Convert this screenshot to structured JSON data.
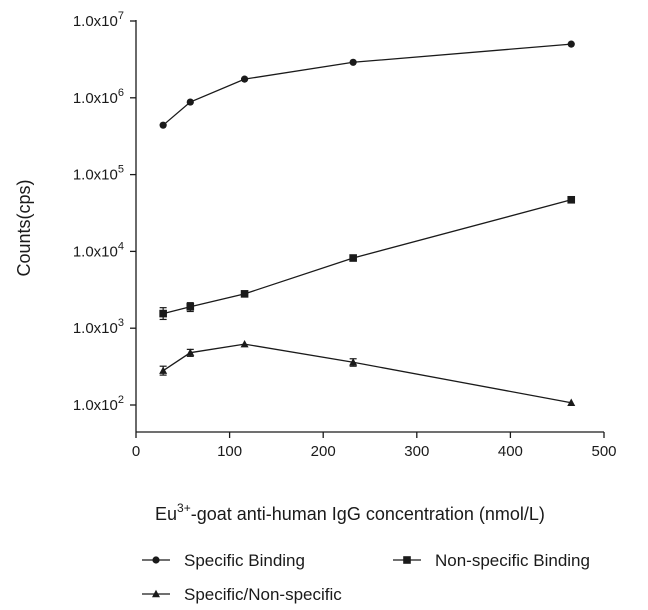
{
  "chart_data": {
    "type": "line",
    "title": "",
    "xlabel": {
      "prefix": "Eu",
      "superscript": "3+",
      "suffix": "-goat anti-human IgG concentration (nmol/L)"
    },
    "ylabel": "Counts(cps)",
    "xlim": [
      0,
      500
    ],
    "ylim": [
      100,
      10000000
    ],
    "yscale": "log",
    "x_ticks": [
      "0",
      "100",
      "200",
      "300",
      "400",
      "500"
    ],
    "y_ticks": [
      {
        "mantissa": "1.0x10",
        "exponent": "2"
      },
      {
        "mantissa": "1.0x10",
        "exponent": "3"
      },
      {
        "mantissa": "1.0x10",
        "exponent": "4"
      },
      {
        "mantissa": "1.0x10",
        "exponent": "5"
      },
      {
        "mantissa": "1.0x10",
        "exponent": "6"
      },
      {
        "mantissa": "1.0x10",
        "exponent": "7"
      }
    ],
    "grid": false,
    "legend_position": "bottom",
    "series": [
      {
        "name": "Specific Binding",
        "marker": "circle",
        "color": "#1a1a1a",
        "x": [
          29,
          58,
          116,
          232,
          465
        ],
        "y": [
          440000,
          880000,
          1750000,
          2900000,
          5000000
        ],
        "err_low": [
          440000,
          880000,
          1750000,
          2900000,
          5000000
        ],
        "err_high": [
          440000,
          880000,
          1750000,
          2900000,
          5000000
        ]
      },
      {
        "name": "Non-specific Binding",
        "marker": "square",
        "color": "#1a1a1a",
        "x": [
          29,
          58,
          116,
          232,
          465
        ],
        "y": [
          1550,
          1900,
          2800,
          8200,
          47000
        ],
        "err_low": [
          1300,
          1650,
          2800,
          8200,
          47000
        ],
        "err_high": [
          1850,
          2150,
          2800,
          8200,
          47000
        ]
      },
      {
        "name": "Specific/Non-specific",
        "marker": "triangle",
        "color": "#1a1a1a",
        "x": [
          29,
          58,
          116,
          232,
          465
        ],
        "y": [
          280,
          480,
          620,
          360,
          107
        ],
        "err_low": [
          245,
          430,
          620,
          320,
          107
        ],
        "err_high": [
          320,
          530,
          620,
          400,
          107
        ]
      }
    ]
  }
}
